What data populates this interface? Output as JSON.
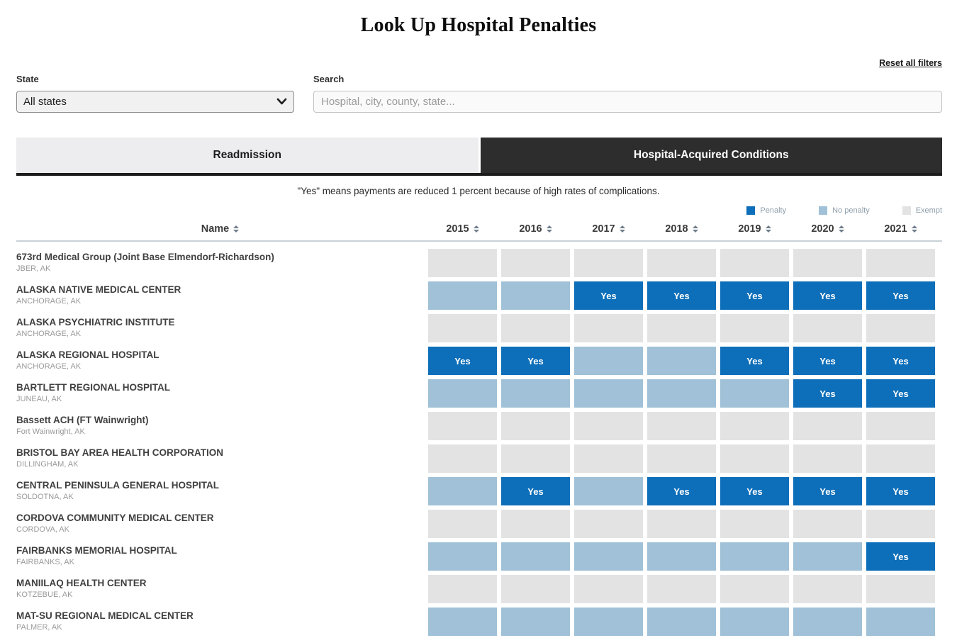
{
  "page": {
    "title": "Look Up Hospital Penalties"
  },
  "filters": {
    "reset_label": "Reset all filters",
    "state_label": "State",
    "state_value": "All states",
    "search_label": "Search",
    "search_placeholder": "Hospital, city, county, state..."
  },
  "tabs": [
    {
      "label": "Readmission",
      "active": false
    },
    {
      "label": "Hospital-Acquired Conditions",
      "active": true
    }
  ],
  "caption": "\"Yes\" means payments are reduced 1 percent because of high rates of complications.",
  "legend": [
    {
      "label": "Penalty",
      "status": "penalty",
      "color": "#0d6eb9"
    },
    {
      "label": "No penalty",
      "status": "no-penalty",
      "color": "#a0c1d7"
    },
    {
      "label": "Exempt",
      "status": "exempt",
      "color": "#e3e3e3"
    }
  ],
  "table": {
    "name_header": "Name",
    "year_headers": [
      "2015",
      "2016",
      "2017",
      "2018",
      "2019",
      "2020",
      "2021"
    ],
    "penalty_text": "Yes",
    "rows": [
      {
        "name": "673rd Medical Group (Joint Base Elmendorf-Richardson)",
        "location": "JBER, AK",
        "statuses": [
          "exempt",
          "exempt",
          "exempt",
          "exempt",
          "exempt",
          "exempt",
          "exempt"
        ]
      },
      {
        "name": "ALASKA NATIVE MEDICAL CENTER",
        "location": "ANCHORAGE, AK",
        "statuses": [
          "no-penalty",
          "no-penalty",
          "penalty",
          "penalty",
          "penalty",
          "penalty",
          "penalty"
        ]
      },
      {
        "name": "ALASKA PSYCHIATRIC INSTITUTE",
        "location": "ANCHORAGE, AK",
        "statuses": [
          "exempt",
          "exempt",
          "exempt",
          "exempt",
          "exempt",
          "exempt",
          "exempt"
        ]
      },
      {
        "name": "ALASKA REGIONAL HOSPITAL",
        "location": "ANCHORAGE, AK",
        "statuses": [
          "penalty",
          "penalty",
          "no-penalty",
          "no-penalty",
          "penalty",
          "penalty",
          "penalty"
        ]
      },
      {
        "name": "BARTLETT REGIONAL HOSPITAL",
        "location": "JUNEAU, AK",
        "statuses": [
          "no-penalty",
          "no-penalty",
          "no-penalty",
          "no-penalty",
          "no-penalty",
          "penalty",
          "penalty"
        ]
      },
      {
        "name": "Bassett ACH (FT Wainwright)",
        "location": "Fort Wainwright, AK",
        "statuses": [
          "exempt",
          "exempt",
          "exempt",
          "exempt",
          "exempt",
          "exempt",
          "exempt"
        ]
      },
      {
        "name": "BRISTOL BAY AREA HEALTH CORPORATION",
        "location": "DILLINGHAM, AK",
        "statuses": [
          "exempt",
          "exempt",
          "exempt",
          "exempt",
          "exempt",
          "exempt",
          "exempt"
        ]
      },
      {
        "name": "CENTRAL PENINSULA GENERAL HOSPITAL",
        "location": "SOLDOTNA, AK",
        "statuses": [
          "no-penalty",
          "penalty",
          "no-penalty",
          "penalty",
          "penalty",
          "penalty",
          "penalty"
        ]
      },
      {
        "name": "CORDOVA COMMUNITY MEDICAL CENTER",
        "location": "CORDOVA, AK",
        "statuses": [
          "exempt",
          "exempt",
          "exempt",
          "exempt",
          "exempt",
          "exempt",
          "exempt"
        ]
      },
      {
        "name": "FAIRBANKS MEMORIAL HOSPITAL",
        "location": "FAIRBANKS, AK",
        "statuses": [
          "no-penalty",
          "no-penalty",
          "no-penalty",
          "no-penalty",
          "no-penalty",
          "no-penalty",
          "penalty"
        ]
      },
      {
        "name": "MANIILAQ HEALTH CENTER",
        "location": "KOTZEBUE, AK",
        "statuses": [
          "exempt",
          "exempt",
          "exempt",
          "exempt",
          "exempt",
          "exempt",
          "exempt"
        ]
      },
      {
        "name": "MAT-SU REGIONAL MEDICAL CENTER",
        "location": "PALMER, AK",
        "statuses": [
          "no-penalty",
          "no-penalty",
          "no-penalty",
          "no-penalty",
          "no-penalty",
          "no-penalty",
          "no-penalty"
        ]
      }
    ]
  }
}
